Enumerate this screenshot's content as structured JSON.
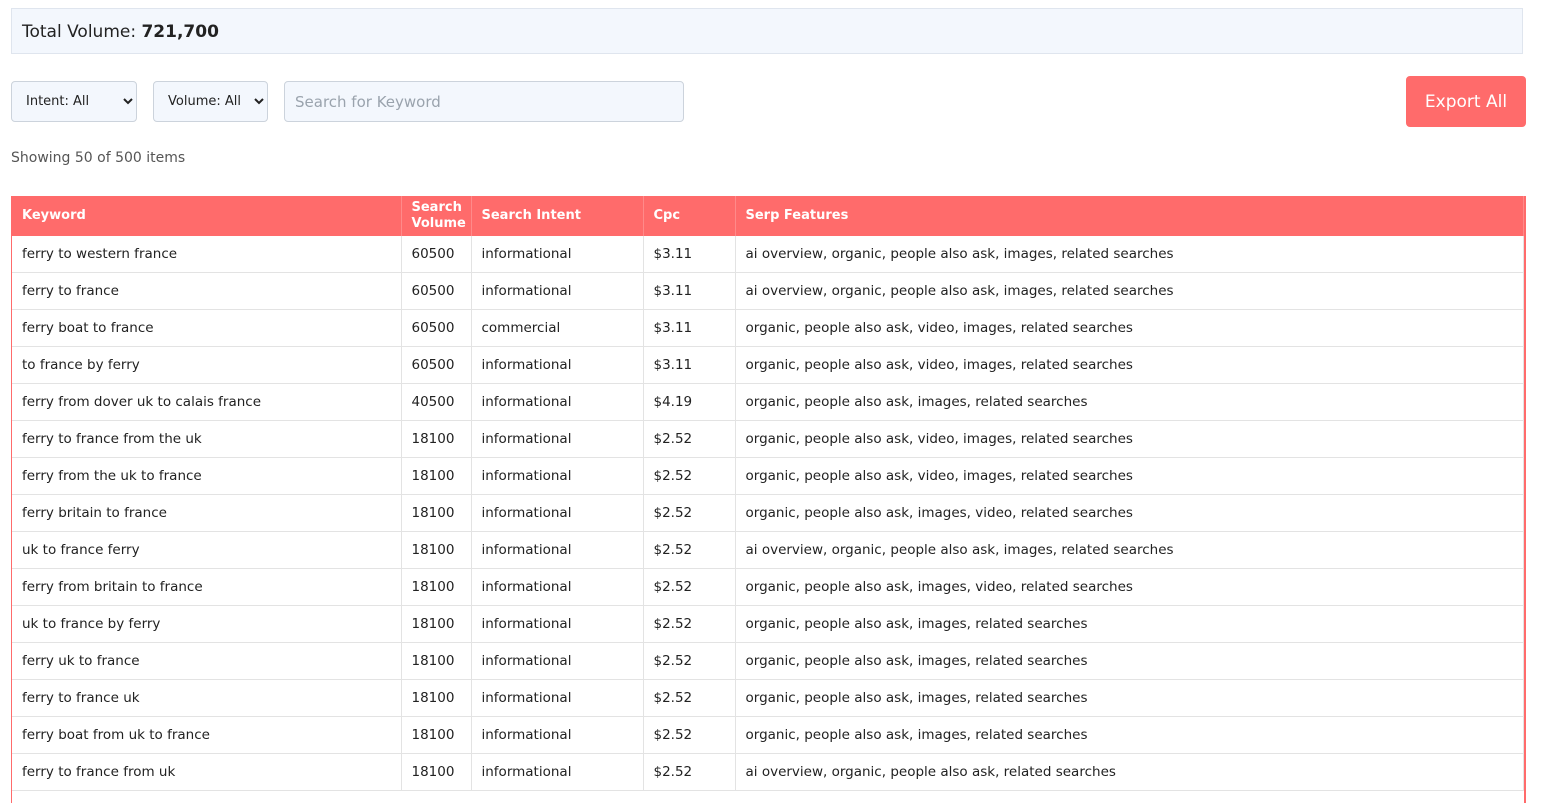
{
  "summary": {
    "label": "Total Volume:",
    "value": "721,700"
  },
  "filters": {
    "intent": "Intent: All",
    "volume": "Volume: All",
    "search_placeholder": "Search for Keyword",
    "export": "Export All"
  },
  "status": "Showing 50 of 500 items",
  "table": {
    "headers": [
      "Keyword",
      "Search Volume",
      "Search Intent",
      "Cpc",
      "Serp Features"
    ],
    "rows": [
      [
        "ferry to western france",
        "60500",
        "informational",
        "$3.11",
        "ai overview, organic, people also ask, images, related searches"
      ],
      [
        "ferry to france",
        "60500",
        "informational",
        "$3.11",
        "ai overview, organic, people also ask, images, related searches"
      ],
      [
        "ferry boat to france",
        "60500",
        "commercial",
        "$3.11",
        "organic, people also ask, video, images, related searches"
      ],
      [
        "to france by ferry",
        "60500",
        "informational",
        "$3.11",
        "organic, people also ask, video, images, related searches"
      ],
      [
        "ferry from dover uk to calais france",
        "40500",
        "informational",
        "$4.19",
        "organic, people also ask, images, related searches"
      ],
      [
        "ferry to france from the uk",
        "18100",
        "informational",
        "$2.52",
        "organic, people also ask, video, images, related searches"
      ],
      [
        "ferry from the uk to france",
        "18100",
        "informational",
        "$2.52",
        "organic, people also ask, video, images, related searches"
      ],
      [
        "ferry britain to france",
        "18100",
        "informational",
        "$2.52",
        "organic, people also ask, images, video, related searches"
      ],
      [
        "uk to france ferry",
        "18100",
        "informational",
        "$2.52",
        "ai overview, organic, people also ask, images, related searches"
      ],
      [
        "ferry from britain to france",
        "18100",
        "informational",
        "$2.52",
        "organic, people also ask, images, video, related searches"
      ],
      [
        "uk to france by ferry",
        "18100",
        "informational",
        "$2.52",
        "organic, people also ask, images, related searches"
      ],
      [
        "ferry uk to france",
        "18100",
        "informational",
        "$2.52",
        "organic, people also ask, images, related searches"
      ],
      [
        "ferry to france uk",
        "18100",
        "informational",
        "$2.52",
        "organic, people also ask, images, related searches"
      ],
      [
        "ferry boat from uk to france",
        "18100",
        "informational",
        "$2.52",
        "organic, people also ask, images, related searches"
      ],
      [
        "ferry to france from uk",
        "18100",
        "informational",
        "$2.52",
        "ai overview, organic, people also ask, related searches"
      ]
    ]
  }
}
